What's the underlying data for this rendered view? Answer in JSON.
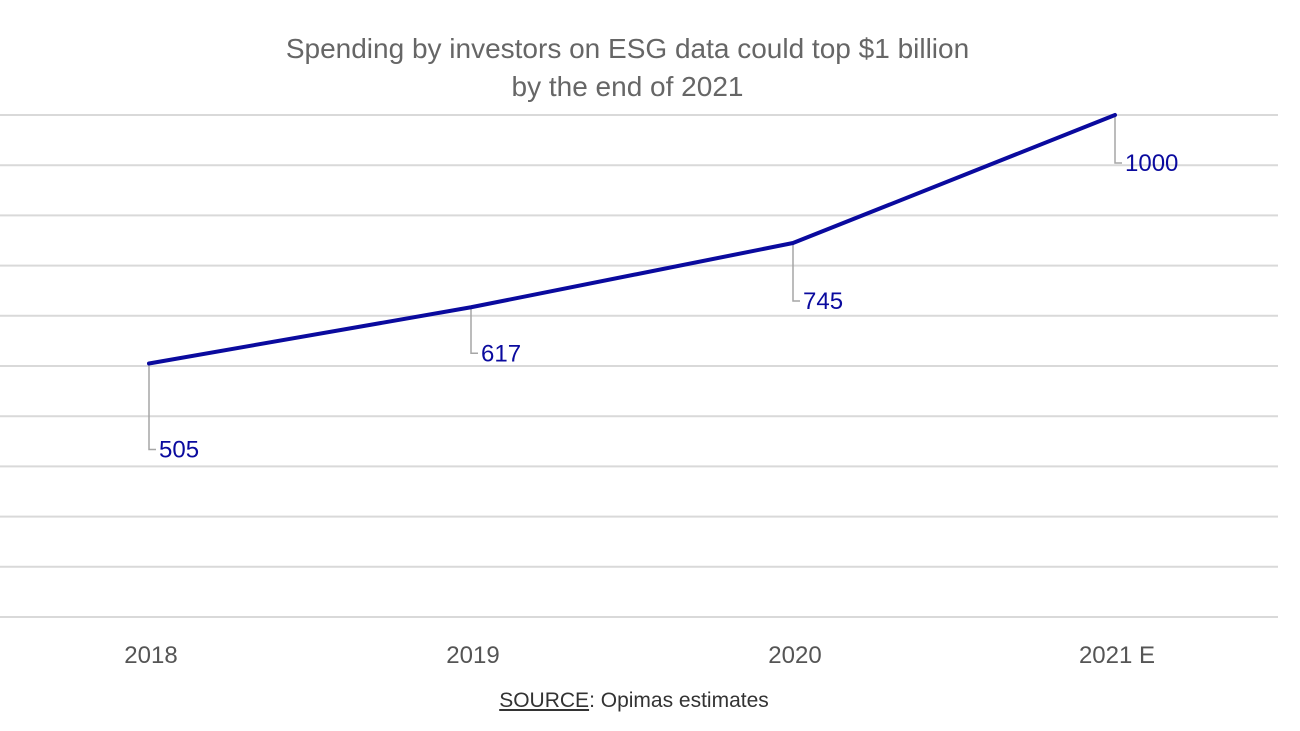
{
  "chart_data": {
    "type": "line",
    "title_lines": [
      "Spending by investors on ESG data could top $1 billion",
      "by the end of 2021"
    ],
    "categories": [
      "2018",
      "2019",
      "2020",
      "2021 E"
    ],
    "series": [
      {
        "values": [
          505,
          617,
          745,
          1000
        ],
        "data_labels": [
          "505",
          "617",
          "745",
          "1000"
        ]
      }
    ],
    "xlabel": "",
    "ylabel": "",
    "ylim": [
      0,
      1000
    ],
    "y_gridlines": [
      0,
      100,
      200,
      300,
      400,
      500,
      600,
      700,
      800,
      900,
      1000
    ],
    "grid": true,
    "legend": "none",
    "colors": {
      "line": "#0A0A9E",
      "label": "#0A0A9E",
      "grid": "#D9D9D9",
      "leader": "#A6A6A6",
      "tick_label": "#555555"
    }
  },
  "footer": {
    "source_label": "SOURCE",
    "source_text": ": Opimas estimates"
  }
}
